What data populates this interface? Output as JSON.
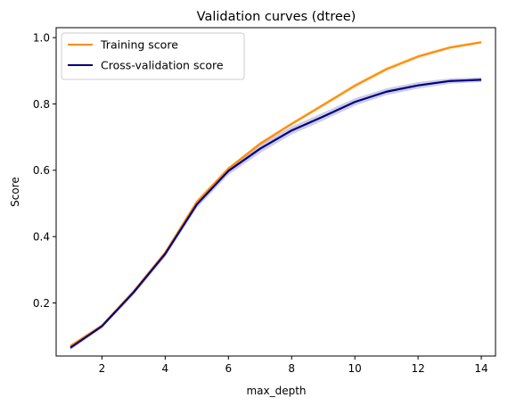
{
  "chart_data": {
    "type": "line",
    "title": "Validation curves (dtree)",
    "xlabel": "max_depth",
    "ylabel": "Score",
    "xlim": [
      0.55,
      14.45
    ],
    "ylim": [
      0.04,
      1.03
    ],
    "xticks": [
      2,
      4,
      6,
      8,
      10,
      12,
      14
    ],
    "yticks": [
      0.2,
      0.4,
      0.6,
      0.8,
      1.0
    ],
    "xtick_labels": [
      "2",
      "4",
      "6",
      "8",
      "10",
      "12",
      "14"
    ],
    "ytick_labels": [
      "0.2",
      "0.4",
      "0.6",
      "0.8",
      "1.0"
    ],
    "grid": false,
    "legend_position": "top-left",
    "x": [
      1,
      2,
      3,
      4,
      5,
      6,
      7,
      8,
      9,
      10,
      11,
      12,
      13,
      14
    ],
    "series": [
      {
        "name": "Training score",
        "color": "#ff8c00",
        "values": [
          0.07,
          0.132,
          0.235,
          0.352,
          0.505,
          0.605,
          0.68,
          0.74,
          0.797,
          0.855,
          0.905,
          0.943,
          0.97,
          0.986
        ],
        "band": [
          0.006,
          0.004,
          0.004,
          0.004,
          0.005,
          0.005,
          0.006,
          0.006,
          0.006,
          0.007,
          0.007,
          0.006,
          0.005,
          0.004
        ]
      },
      {
        "name": "Cross-validation score",
        "color": "#000080",
        "values": [
          0.065,
          0.13,
          0.232,
          0.348,
          0.497,
          0.598,
          0.665,
          0.72,
          0.762,
          0.806,
          0.837,
          0.856,
          0.869,
          0.873
        ],
        "band": [
          0.007,
          0.006,
          0.008,
          0.009,
          0.011,
          0.012,
          0.013,
          0.012,
          0.012,
          0.011,
          0.01,
          0.01,
          0.008,
          0.007
        ]
      }
    ]
  }
}
